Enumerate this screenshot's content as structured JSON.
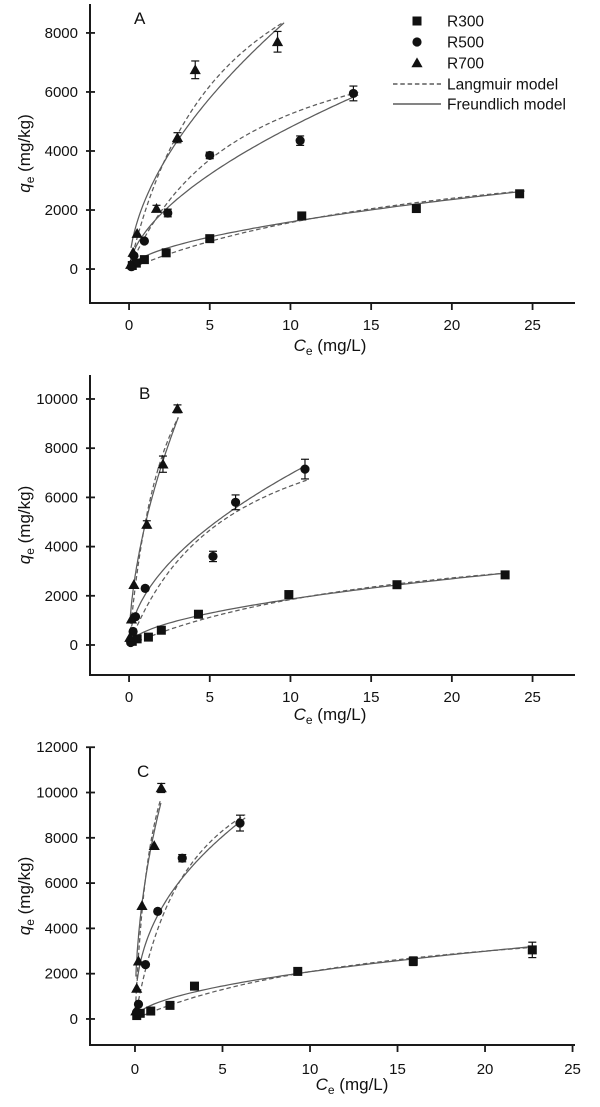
{
  "figure": {
    "background": "#ffffff"
  },
  "colors": {
    "marker": "#111111",
    "curve": "#5c5c5c",
    "dashed_curve": "#5c5c5c",
    "axis": "#1a1a1a",
    "text": "#111111"
  },
  "legend": {
    "items": [
      {
        "marker": "square",
        "label": "R300"
      },
      {
        "marker": "circle",
        "label": "R500"
      },
      {
        "marker": "triangle",
        "label": "R700"
      },
      {
        "line": "dashed",
        "label": "Langmuir model"
      },
      {
        "line": "solid",
        "label": "Freundlich model"
      }
    ]
  },
  "chart_data": {
    "type": "scatter",
    "title": "",
    "xlabel": {
      "var": "C",
      "sub": "e",
      "unit": " (mg/L)"
    },
    "ylabel": {
      "var": "q",
      "sub": "e",
      "unit": " (mg/kg)"
    },
    "legend_position": "top-right of panel A",
    "grid": false,
    "panels": [
      {
        "label": "A",
        "xticks": [
          0,
          5,
          10,
          15,
          20,
          25
        ],
        "yticks": [
          0,
          2000,
          4000,
          6000,
          8000
        ],
        "xlim": [
          -2.42,
          27.63
        ],
        "ylim": [
          -1150,
          8980
        ],
        "series": [
          {
            "name": "R300",
            "marker": "square",
            "points": [
              [
                0.2,
                120
              ],
              [
                0.45,
                200
              ],
              [
                0.95,
                320
              ],
              [
                2.3,
                550
              ],
              [
                5.0,
                1030
              ],
              [
                10.7,
                1800
              ],
              [
                17.8,
                2050
              ],
              [
                24.2,
                2550
              ]
            ],
            "errors": [
              0,
              0,
              0,
              0,
              0,
              90,
              110,
              120
            ]
          },
          {
            "name": "R500",
            "marker": "circle",
            "points": [
              [
                0.15,
                80
              ],
              [
                0.3,
                450
              ],
              [
                0.95,
                950
              ],
              [
                2.4,
                1900
              ],
              [
                5.0,
                3850
              ],
              [
                10.6,
                4350
              ],
              [
                13.9,
                5950
              ]
            ],
            "errors": [
              0,
              0,
              0,
              130,
              110,
              160,
              250
            ]
          },
          {
            "name": "R700",
            "marker": "triangle",
            "points": [
              [
                0.1,
                150
              ],
              [
                0.25,
                560
              ],
              [
                0.5,
                1200
              ],
              [
                1.7,
                2050
              ],
              [
                3.0,
                4450
              ],
              [
                4.1,
                6750
              ],
              [
                9.2,
                7700
              ]
            ],
            "errors": [
              0,
              0,
              0,
              110,
              170,
              300,
              350
            ]
          }
        ],
        "models": {
          "langmuir": [
            {
              "series": "R300",
              "qm": 5000,
              "KL": 0.046,
              "range": [
                0.1,
                24.5
              ]
            },
            {
              "series": "R500",
              "qm": 9000,
              "KL": 0.14,
              "range": [
                0.15,
                14.2
              ]
            },
            {
              "series": "R700",
              "qm": 13500,
              "KL": 0.17,
              "range": [
                0.12,
                9.6
              ]
            }
          ],
          "freundlich": [
            {
              "series": "R300",
              "KF": 440,
              "n": 0.56,
              "range": [
                0.1,
                24.5
              ]
            },
            {
              "series": "R500",
              "KF": 1250,
              "n": 0.585,
              "range": [
                0.15,
                14.2
              ]
            },
            {
              "series": "R700",
              "KF": 2350,
              "n": 0.56,
              "range": [
                0.12,
                9.6
              ]
            }
          ]
        }
      },
      {
        "label": "B",
        "xticks": [
          0,
          5,
          10,
          15,
          20,
          25
        ],
        "yticks": [
          0,
          2000,
          4000,
          6000,
          8000,
          10000
        ],
        "xlim": [
          -2.42,
          27.63
        ],
        "ylim": [
          -1220,
          10975
        ],
        "series": [
          {
            "name": "R300",
            "marker": "square",
            "points": [
              [
                0.2,
                150
              ],
              [
                0.5,
                250
              ],
              [
                1.2,
                320
              ],
              [
                2.0,
                600
              ],
              [
                4.3,
                1250
              ],
              [
                9.9,
                2050
              ],
              [
                16.6,
                2450
              ],
              [
                23.3,
                2850
              ]
            ],
            "errors": [
              0,
              0,
              0,
              0,
              90,
              0,
              110,
              110
            ]
          },
          {
            "name": "R500",
            "marker": "circle",
            "points": [
              [
                0.1,
                100
              ],
              [
                0.25,
                550
              ],
              [
                0.4,
                1150
              ],
              [
                1.0,
                2300
              ],
              [
                5.2,
                3600
              ],
              [
                6.6,
                5800
              ],
              [
                10.9,
                7150
              ]
            ],
            "errors": [
              0,
              0,
              0,
              0,
              210,
              300,
              400
            ]
          },
          {
            "name": "R700",
            "marker": "triangle",
            "points": [
              [
                0.05,
                300
              ],
              [
                0.15,
                1050
              ],
              [
                0.3,
                2450
              ],
              [
                1.1,
                4900
              ],
              [
                2.1,
                7350
              ],
              [
                3.0,
                9600
              ]
            ],
            "errors": [
              0,
              0,
              0,
              150,
              330,
              160
            ]
          }
        ],
        "models": {
          "langmuir": [
            {
              "series": "R300",
              "qm": 5200,
              "KL": 0.055,
              "range": [
                0.12,
                23.4
              ]
            },
            {
              "series": "R500",
              "qm": 10500,
              "KL": 0.16,
              "range": [
                0.15,
                11.0
              ]
            },
            {
              "series": "R700",
              "qm": 16000,
              "KL": 0.45,
              "range": [
                0.08,
                3.05
              ]
            }
          ],
          "freundlich": [
            {
              "series": "R300",
              "KF": 550,
              "n": 0.53,
              "range": [
                0.12,
                23.4
              ]
            },
            {
              "series": "R500",
              "KF": 2050,
              "n": 0.53,
              "range": [
                0.15,
                11.0
              ]
            },
            {
              "series": "R700",
              "KF": 4900,
              "n": 0.57,
              "range": [
                0.08,
                3.05
              ]
            }
          ]
        }
      },
      {
        "label": "C",
        "xticks": [
          0,
          5,
          10,
          15,
          20,
          25
        ],
        "yticks": [
          0,
          2000,
          4000,
          6000,
          8000,
          10000,
          12000
        ],
        "xlim": [
          -2.57,
          25.14
        ],
        "ylim": [
          -1150,
          12010
        ],
        "series": [
          {
            "name": "R300",
            "marker": "square",
            "points": [
              [
                0.1,
                150
              ],
              [
                0.3,
                250
              ],
              [
                0.9,
                350
              ],
              [
                2.0,
                600
              ],
              [
                3.4,
                1450
              ],
              [
                9.3,
                2100
              ],
              [
                15.9,
                2550
              ],
              [
                22.7,
                3050
              ]
            ],
            "errors": [
              0,
              0,
              0,
              0,
              90,
              140,
              190,
              340
            ]
          },
          {
            "name": "R500",
            "marker": "circle",
            "points": [
              [
                0.1,
                300
              ],
              [
                0.2,
                650
              ],
              [
                0.6,
                2400
              ],
              [
                1.3,
                4750
              ],
              [
                2.7,
                7100
              ],
              [
                6.0,
                8650
              ]
            ],
            "errors": [
              0,
              0,
              0,
              0,
              160,
              350
            ]
          },
          {
            "name": "R700",
            "marker": "triangle",
            "points": [
              [
                0.05,
                350
              ],
              [
                0.1,
                1350
              ],
              [
                0.2,
                2550
              ],
              [
                0.4,
                5000
              ],
              [
                1.1,
                7650
              ],
              [
                1.5,
                10200
              ]
            ],
            "errors": [
              0,
              0,
              0,
              0,
              0,
              200
            ]
          }
        ],
        "models": {
          "langmuir": [
            {
              "series": "R300",
              "qm": 5300,
              "KL": 0.065,
              "range": [
                0.08,
                22.8
              ]
            },
            {
              "series": "R500",
              "qm": 13500,
              "KL": 0.32,
              "range": [
                0.12,
                6.3
              ]
            },
            {
              "series": "R700",
              "qm": 16000,
              "KL": 1.05,
              "range": [
                0.05,
                1.48
              ]
            }
          ],
          "freundlich": [
            {
              "series": "R300",
              "KF": 630,
              "n": 0.52,
              "range": [
                0.08,
                22.8
              ]
            },
            {
              "series": "R500",
              "KF": 4100,
              "n": 0.42,
              "range": [
                0.12,
                6.3
              ]
            },
            {
              "series": "R700",
              "KF": 7900,
              "n": 0.48,
              "range": [
                0.05,
                1.48
              ]
            }
          ]
        }
      }
    ]
  }
}
